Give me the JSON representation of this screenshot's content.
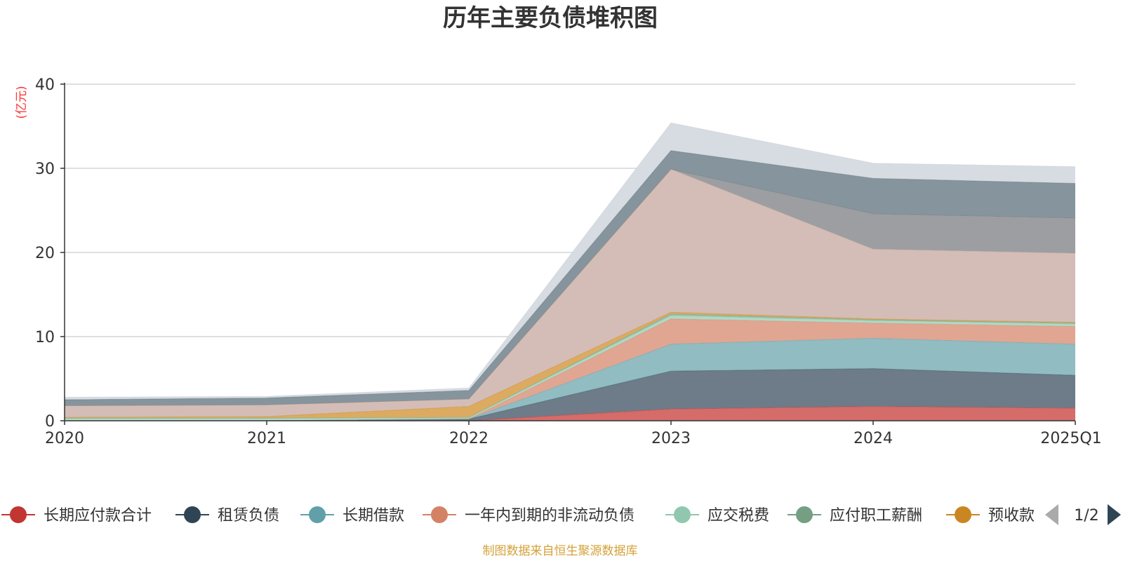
{
  "chart_data": {
    "type": "area",
    "stacked": true,
    "title": "历年主要负债堆积图",
    "ylabel": "(亿元)",
    "xlabel": "",
    "x": [
      "2020",
      "2021",
      "2022",
      "2023",
      "2024",
      "2025Q1"
    ],
    "ylim": [
      0,
      40
    ],
    "y_ticks": [
      "0",
      "10",
      "20",
      "30",
      "40"
    ],
    "grid": true,
    "legend_position": "bottom",
    "legend_page": "1/2",
    "series": [
      {
        "name": "长期应付款合计",
        "color": "#c23531",
        "fill": "#d46c6a",
        "values": [
          0,
          0,
          0,
          1.4,
          1.7,
          1.5
        ],
        "in_legend": true
      },
      {
        "name": "租赁负债",
        "color": "#2f4554",
        "fill": "#6d7c88",
        "values": [
          0,
          0,
          0.2,
          4.5,
          4.5,
          3.9
        ],
        "in_legend": true
      },
      {
        "name": "长期借款",
        "color": "#61a0a8",
        "fill": "#90bcc2",
        "values": [
          0,
          0,
          0,
          3.2,
          3.6,
          3.7
        ],
        "in_legend": true
      },
      {
        "name": "一年内到期的非流动负债",
        "color": "#d48265",
        "fill": "#e0a692",
        "values": [
          0,
          0,
          0,
          3.0,
          1.8,
          2.1
        ],
        "in_legend": true
      },
      {
        "name": "应交税费",
        "color": "#91c7ae",
        "fill": "#b0d8c5",
        "values": [
          0.3,
          0.3,
          0.2,
          0.4,
          0.3,
          0.3
        ],
        "in_legend": true
      },
      {
        "name": "应付职工薪酬",
        "color": "#749f83",
        "fill": "#9cbba7",
        "values": [
          0,
          0,
          0,
          0.2,
          0.1,
          0.1
        ],
        "in_legend": true
      },
      {
        "name": "预收款",
        "color": "#ca8622",
        "fill": "#dcab61",
        "values": [
          0.1,
          0.2,
          1.3,
          0.2,
          0.1,
          0.1
        ],
        "in_legend": true
      },
      {
        "name": "",
        "color": "#bda29a",
        "fill": "#d3bdb6",
        "values": [
          1.4,
          1.4,
          0.9,
          17.0,
          8.3,
          8.2
        ],
        "in_legend": false
      },
      {
        "name": "",
        "color": "#6e7074",
        "fill": "#9c9ea2",
        "values": [
          0,
          0,
          0,
          0,
          4.2,
          4.2
        ],
        "in_legend": false
      },
      {
        "name": "",
        "color": "#546570",
        "fill": "#86959d",
        "values": [
          0.7,
          0.8,
          1.0,
          2.2,
          4.2,
          4.1
        ],
        "in_legend": false
      },
      {
        "name": "",
        "color": "#c4ccd3",
        "fill": "#d7dce2",
        "values": [
          0.3,
          0.2,
          0.3,
          3.3,
          1.8,
          2.0
        ],
        "in_legend": false
      }
    ]
  },
  "footer": {
    "source": "制图数据来自恒生聚源数据库"
  },
  "colors": {
    "title": "#333333",
    "axis_label": "#ff3333",
    "tick": "#333333",
    "grid": "#cccccc",
    "axis": "#333333",
    "source": "#d4a23a",
    "pager_active": "#2f4554",
    "pager_inactive": "#aaaaaa"
  }
}
